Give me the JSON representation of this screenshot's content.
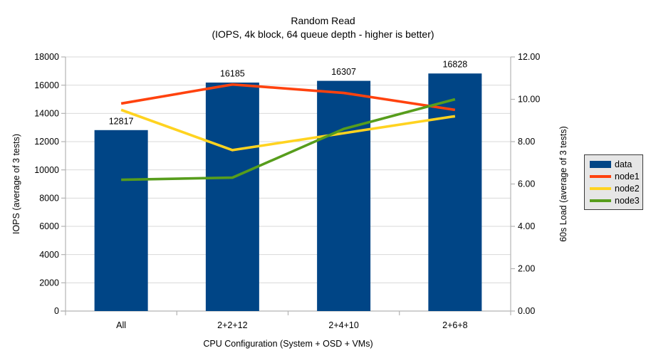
{
  "chart_data": {
    "type": "combo-bar-line",
    "title": "Random Read",
    "subtitle": "(IOPS, 4k block, 64 queue depth - higher is better)",
    "categories": [
      "All",
      "2+2+12",
      "2+4+10",
      "2+6+8"
    ],
    "bar_series": {
      "name": "data",
      "color": "#004586",
      "axis": "left",
      "values": [
        12817,
        16185,
        16307,
        16828
      ],
      "data_labels": [
        "12817",
        "16185",
        "16307",
        "16828"
      ]
    },
    "line_series": [
      {
        "name": "node1",
        "color": "#ff420e",
        "axis": "right",
        "values": [
          9.8,
          10.7,
          10.3,
          9.5
        ]
      },
      {
        "name": "node2",
        "color": "#ffd320",
        "axis": "right",
        "values": [
          9.5,
          7.6,
          8.4,
          9.2
        ]
      },
      {
        "name": "node3",
        "color": "#579d1c",
        "axis": "right",
        "values": [
          6.2,
          6.3,
          8.6,
          10.0
        ]
      }
    ],
    "left_axis": {
      "title": "IOPS (average of 3 tests)",
      "min": 0,
      "max": 18000,
      "step": 2000,
      "tick_labels": [
        "0",
        "2000",
        "4000",
        "6000",
        "8000",
        "10000",
        "12000",
        "14000",
        "16000",
        "18000"
      ]
    },
    "right_axis": {
      "title": "60s Load (average of 3 tests)",
      "min": 0,
      "max": 12,
      "step": 2,
      "tick_labels": [
        "0.00",
        "2.00",
        "4.00",
        "6.00",
        "8.00",
        "10.00",
        "12.00"
      ]
    },
    "x_axis": {
      "title": "CPU Configuration (System + OSD + VMs)"
    },
    "legend": {
      "position": "right",
      "entries": [
        {
          "label": "data",
          "type": "bar",
          "color": "#004586"
        },
        {
          "label": "node1",
          "type": "line",
          "color": "#ff420e"
        },
        {
          "label": "node2",
          "type": "line",
          "color": "#ffd320"
        },
        {
          "label": "node3",
          "type": "line",
          "color": "#579d1c"
        }
      ]
    },
    "grid": true,
    "colors": {
      "background": "#ffffff",
      "gridline": "#d9d9d9",
      "axis": "#b3b3b3",
      "text": "#000000",
      "legend_bg": "#e6e6e6",
      "legend_border": "#3a3a3a"
    }
  }
}
